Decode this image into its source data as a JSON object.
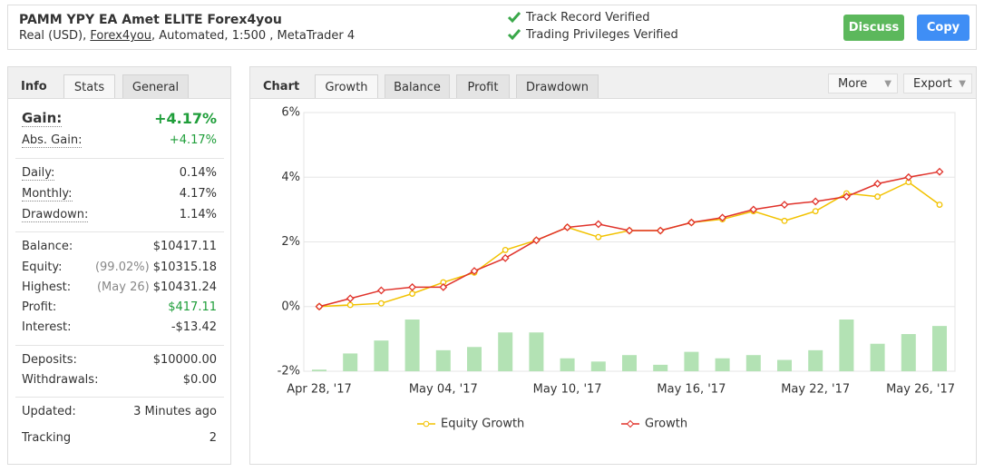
{
  "header": {
    "title": "PAMM YPY EA Amet ELITE Forex4you",
    "subtitle": [
      "Real (USD), ",
      "Forex4you",
      ", Automated, 1:500 , MetaTrader 4"
    ],
    "verified": [
      "Track Record Verified",
      "Trading Privileges Verified"
    ],
    "buttons": [
      "Discuss",
      "Copy"
    ]
  },
  "stats_panel": {
    "tabs": [
      "Info",
      "Stats",
      "General"
    ],
    "groups": [
      [
        {
          "label": "Gain:",
          "value": "+4.17%"
        },
        {
          "label": "Abs. Gain:",
          "value": "+4.17%"
        }
      ],
      [
        {
          "label": "Daily:",
          "value": "0.14%"
        },
        {
          "label": "Monthly:",
          "value": "4.17%"
        },
        {
          "label": "Drawdown:",
          "value": "1.14%"
        }
      ],
      [
        {
          "label": "Balance:",
          "value": "$10417.11"
        },
        {
          "label": "Equity:",
          "note": "(99.02%)",
          "value": "$10315.18"
        },
        {
          "label": "Highest:",
          "note": "(May 26)",
          "value": "$10431.24"
        },
        {
          "label": "Profit:",
          "value": "$417.11"
        },
        {
          "label": "Interest:",
          "value": "-$13.42"
        }
      ],
      [
        {
          "label": "Deposits:",
          "value": "$10000.00"
        },
        {
          "label": "Withdrawals:",
          "value": "$0.00"
        }
      ],
      [
        {
          "label": "Updated:",
          "value": "3 Minutes ago"
        },
        {
          "label": "Tracking",
          "value": "2"
        }
      ]
    ]
  },
  "chart_panel": {
    "title": "Chart",
    "tabs": [
      "Growth",
      "Balance",
      "Profit",
      "Drawdown"
    ],
    "menus": [
      "More",
      "Export"
    ]
  },
  "chart_data": {
    "type": "line",
    "categories": [
      "Apr 28, '17",
      null,
      null,
      null,
      "May 04, '17",
      null,
      null,
      null,
      "May 10, '17",
      null,
      null,
      null,
      "May 16, '17",
      null,
      null,
      null,
      "May 22, '17",
      null,
      null,
      null,
      "May 26, '17"
    ],
    "series": [
      {
        "name": "Equity Growth",
        "color": "#f2c200",
        "values": [
          0,
          0.05,
          0.1,
          0.4,
          0.75,
          1.05,
          1.75,
          2.05,
          2.45,
          2.15,
          2.35,
          2.35,
          2.6,
          2.7,
          2.95,
          2.65,
          2.95,
          3.5,
          3.4,
          3.85,
          3.15
        ]
      },
      {
        "name": "Growth",
        "color": "#e0322a",
        "values": [
          0,
          0.25,
          0.5,
          0.6,
          0.6,
          1.1,
          1.5,
          2.05,
          2.45,
          2.55,
          2.35,
          2.35,
          2.6,
          2.75,
          3.0,
          3.15,
          3.25,
          3.4,
          3.8,
          4.0,
          4.17
        ]
      },
      {
        "type": "bar",
        "axis": "y2",
        "color": "#b3e2b4",
        "values": [
          0.05,
          0.55,
          0.95,
          1.6,
          0.65,
          0.75,
          1.2,
          1.2,
          0.4,
          0.3,
          0.5,
          0.2,
          0.6,
          0.4,
          0.5,
          0.35,
          0.65,
          1.6,
          0.85,
          1.15,
          1.4
        ]
      }
    ],
    "ylim": [
      -2,
      6
    ],
    "yticks": [
      {
        "value": -2,
        "label": "-2%"
      },
      {
        "value": 0,
        "label": "0%"
      },
      {
        "value": 2,
        "label": "2%"
      },
      {
        "value": 4,
        "label": "4%"
      },
      {
        "value": 6,
        "label": "6%"
      }
    ],
    "y2lim": [
      0,
      8
    ],
    "grid": true
  }
}
